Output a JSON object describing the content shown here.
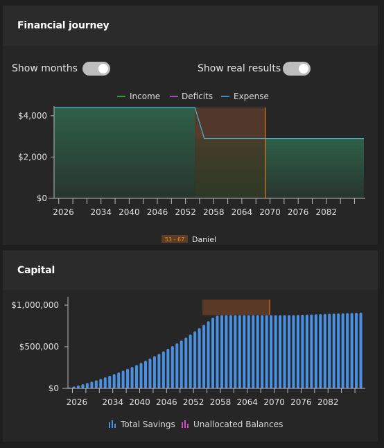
{
  "journey": {
    "title": "Financial journey",
    "toggles": [
      {
        "label": "Show months",
        "on": true
      },
      {
        "label": "Show real results",
        "on": true
      }
    ]
  },
  "capital": {
    "title": "Capital"
  },
  "colors": {
    "income": "#2e7d32",
    "deficit": "#8e44ad",
    "expense": "#4db6d6",
    "savings": "#4a90e2",
    "unallocated": "#d24ad2",
    "highlight": "#e07a2a"
  },
  "chart_data": [
    {
      "type": "area",
      "legend": [
        "Income",
        "Deficits",
        "Expense"
      ],
      "legend_position": "top",
      "x": [
        2024,
        2054,
        2056,
        2069,
        2090
      ],
      "expense": [
        4400,
        4400,
        2900,
        2900,
        2900
      ],
      "income": [
        4400,
        4400,
        0,
        0,
        2900
      ],
      "deficits": [
        0,
        0,
        2900,
        2900,
        0
      ],
      "yticks": [
        "$4,000",
        "$2,000",
        "$0"
      ],
      "ytick_values": [
        4000,
        2000,
        0
      ],
      "xticks": [
        "2026",
        "2034",
        "2040",
        "2046",
        "2052",
        "2058",
        "2064",
        "2070",
        "2076",
        "2082"
      ],
      "xtick_values": [
        2026,
        2034,
        2040,
        2046,
        2052,
        2058,
        2064,
        2070,
        2076,
        2082
      ],
      "xlim": [
        2024,
        2090
      ],
      "ylim": [
        0,
        4400
      ],
      "highlight_range": [
        2054,
        2069
      ],
      "highlight_label": {
        "range": "53 - 67",
        "person": "Daniel"
      }
    },
    {
      "type": "bar",
      "legend": [
        "Total Savings",
        "Unallocated Balances"
      ],
      "legend_position": "bottom",
      "x_start": 2024,
      "x_end": 2089,
      "values": [
        10000,
        22000,
        35000,
        50000,
        65000,
        80000,
        97000,
        114000,
        132000,
        151000,
        171000,
        191000,
        212000,
        234000,
        257000,
        281000,
        306000,
        332000,
        358000,
        386000,
        415000,
        445000,
        476000,
        508000,
        541000,
        575000,
        611000,
        647000,
        685000,
        724000,
        764000,
        806000,
        849000,
        875000,
        880000,
        880000,
        880000,
        880000,
        880000,
        880000,
        880000,
        880000,
        880000,
        880000,
        880000,
        880000,
        880000,
        880000,
        880000,
        880000,
        880000,
        882000,
        884000,
        886000,
        888000,
        890000,
        892000,
        894000,
        896000,
        898000,
        900000,
        902000,
        904000,
        906000,
        908000,
        910000
      ],
      "yticks": [
        "$1,000,000",
        "$500,000",
        "$0"
      ],
      "ytick_values": [
        1000000,
        500000,
        0
      ],
      "xticks": [
        "2026",
        "2034",
        "2040",
        "2046",
        "2052",
        "2058",
        "2064",
        "2070",
        "2076",
        "2082"
      ],
      "xtick_values": [
        2026,
        2034,
        2040,
        2046,
        2052,
        2058,
        2064,
        2070,
        2076,
        2082
      ],
      "xlim": [
        2024,
        2090
      ],
      "ylim": [
        0,
        1100000
      ],
      "highlight_range": [
        2054,
        2069
      ]
    }
  ]
}
